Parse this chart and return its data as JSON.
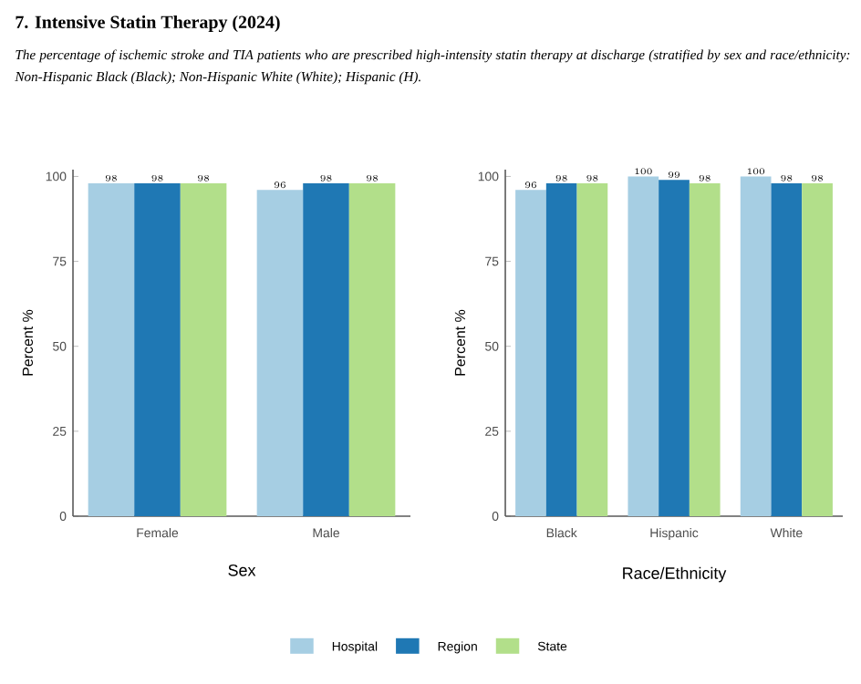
{
  "chart_data": [
    {
      "type": "bar",
      "title": "7.  Intensive Statin Therapy (2024)",
      "subtitle": "The percentage of ischemic stroke and TIA patients who are prescribed high-intensity statin therapy at discharge (stratified by sex and race/ethnicity:  Non-Hispanic Black (Black); Non-Hispanic White (White); Hispanic (H).",
      "xlabel": "Sex",
      "ylabel": "Percent %",
      "categories": [
        "Female",
        "Male"
      ],
      "series": [
        {
          "name": "Hospital",
          "color": "#a6cee3",
          "values": [
            98,
            96
          ]
        },
        {
          "name": "Region",
          "color": "#1f78b4",
          "values": [
            98,
            98
          ]
        },
        {
          "name": "State",
          "color": "#b2df8a",
          "values": [
            98,
            98
          ]
        }
      ],
      "ylim": [
        0,
        102
      ],
      "yticks": [
        0,
        25,
        50,
        75,
        100
      ],
      "data_labels": true,
      "legend": "bottom"
    },
    {
      "type": "bar",
      "xlabel": "Race/Ethnicity",
      "ylabel": "Percent %",
      "categories": [
        "Black",
        "Hispanic",
        "White"
      ],
      "series": [
        {
          "color": "#a6cee3",
          "values": [
            96,
            100,
            100
          ]
        },
        {
          "color": "#1f78b4",
          "values": [
            98,
            99,
            98
          ]
        },
        {
          "color": "#b2df8a",
          "values": [
            98,
            98,
            98
          ]
        }
      ],
      "ylim": [
        0,
        102
      ],
      "yticks": [
        0,
        25,
        50,
        75,
        100
      ],
      "data_labels": true
    }
  ]
}
